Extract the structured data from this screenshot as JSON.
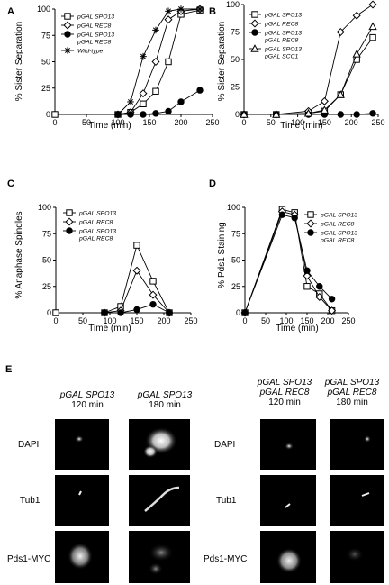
{
  "panels": {
    "A": {
      "label": "A",
      "ylabel": "% Sister Separation",
      "xlabel": "Time (min)"
    },
    "B": {
      "label": "B",
      "ylabel": "% Sister Separation",
      "xlabel": "Time (min)"
    },
    "C": {
      "label": "C",
      "ylabel": "% Anaphase Spindles",
      "xlabel": "Time (min)"
    },
    "D": {
      "label": "D",
      "ylabel": "% Pds1 Staining",
      "xlabel": "Time (min)"
    },
    "E": {
      "label": "E"
    }
  },
  "panelE": {
    "col1": {
      "line1": "pGAL SPO13",
      "time": "120 min"
    },
    "col2": {
      "line1": "pGAL  SPO13",
      "time": "180 min"
    },
    "col3": {
      "line1": "pGAL  SPO13",
      "line2": "pGAL  REC8",
      "time": "120 min"
    },
    "col4": {
      "line1": "pGAL  SPO13",
      "line2": "pGAL  REC8",
      "time": "180 min"
    },
    "rows": [
      "DAPI",
      "Tub1",
      "Pds1-MYC"
    ]
  },
  "chart_data": [
    {
      "panel": "A",
      "type": "line",
      "xlabel": "Time (min)",
      "ylabel": "% Sister Separation",
      "xlim": [
        0,
        250
      ],
      "ylim": [
        0,
        100
      ],
      "xticks": [
        0,
        50,
        100,
        150,
        200,
        250
      ],
      "yticks": [
        0,
        25,
        50,
        75,
        100
      ],
      "legend_position": "top-left",
      "series": [
        {
          "name": "pGAL SPO13",
          "marker": "open-square",
          "x": [
            0,
            100,
            120,
            140,
            160,
            180,
            200,
            230
          ],
          "y": [
            0,
            0,
            2,
            10,
            22,
            50,
            95,
            99
          ]
        },
        {
          "name": "pGAL REC8",
          "marker": "open-diamond",
          "x": [
            100,
            120,
            140,
            160,
            180,
            200,
            230
          ],
          "y": [
            0,
            2,
            20,
            50,
            90,
            98,
            100
          ]
        },
        {
          "name": "pGAL SPO13 pGAL REC8",
          "marker": "filled-circle",
          "x": [
            100,
            120,
            140,
            160,
            180,
            200,
            230
          ],
          "y": [
            0,
            0,
            0,
            1,
            3,
            12,
            23
          ]
        },
        {
          "name": "Wild-type",
          "marker": "asterisk",
          "x": [
            100,
            120,
            140,
            160,
            180,
            200,
            230
          ],
          "y": [
            0,
            12,
            55,
            80,
            98,
            100,
            100
          ]
        }
      ]
    },
    {
      "panel": "B",
      "type": "line",
      "xlabel": "Time (min)",
      "ylabel": "% Sister Separation",
      "xlim": [
        0,
        250
      ],
      "ylim": [
        0,
        100
      ],
      "xticks": [
        0,
        50,
        100,
        150,
        200,
        250
      ],
      "yticks": [
        0,
        25,
        50,
        75,
        100
      ],
      "legend_position": "top-left",
      "series": [
        {
          "name": "pGAL SPO13",
          "marker": "open-square",
          "x": [
            0,
            60,
            120,
            150,
            180,
            210,
            240
          ],
          "y": [
            0,
            0,
            1,
            3,
            18,
            50,
            70
          ]
        },
        {
          "name": "pGAL REC8",
          "marker": "open-diamond",
          "x": [
            0,
            60,
            120,
            150,
            180,
            210,
            240
          ],
          "y": [
            0,
            0,
            3,
            12,
            75,
            90,
            100
          ]
        },
        {
          "name": "pGAL SPO13 pGAL REC8",
          "marker": "filled-circle",
          "x": [
            0,
            60,
            120,
            150,
            180,
            210,
            240
          ],
          "y": [
            0,
            0,
            0,
            0,
            0,
            0,
            1
          ]
        },
        {
          "name": "pGAL SPO13 pGAL SCC1",
          "marker": "open-triangle",
          "x": [
            0,
            60,
            120,
            150,
            180,
            210,
            240
          ],
          "y": [
            0,
            0,
            1,
            4,
            18,
            55,
            80
          ]
        }
      ]
    },
    {
      "panel": "C",
      "type": "line",
      "xlabel": "Time (min)",
      "ylabel": "% Anaphase Spindles",
      "xlim": [
        0,
        250
      ],
      "ylim": [
        0,
        100
      ],
      "xticks": [
        0,
        50,
        100,
        150,
        200,
        250
      ],
      "yticks": [
        0,
        25,
        50,
        75,
        100
      ],
      "legend_position": "top-left",
      "series": [
        {
          "name": "pGAL SPO13",
          "marker": "open-square",
          "x": [
            0,
            90,
            120,
            150,
            180,
            210
          ],
          "y": [
            0,
            0,
            6,
            64,
            30,
            0
          ]
        },
        {
          "name": "pGAL REC8",
          "marker": "open-diamond",
          "x": [
            90,
            120,
            150,
            180,
            210
          ],
          "y": [
            0,
            2,
            40,
            17,
            0
          ]
        },
        {
          "name": "pGAL SPO13 pGAL REC8",
          "marker": "filled-circle",
          "x": [
            90,
            120,
            150,
            180,
            210
          ],
          "y": [
            0,
            0,
            3,
            8,
            0
          ]
        }
      ]
    },
    {
      "panel": "D",
      "type": "line",
      "xlabel": "Time (min)",
      "ylabel": "% Pds1 Staining",
      "xlim": [
        0,
        250
      ],
      "ylim": [
        0,
        100
      ],
      "xticks": [
        0,
        50,
        100,
        150,
        200,
        250
      ],
      "yticks": [
        0,
        25,
        50,
        75,
        100
      ],
      "legend_position": "top-right",
      "series": [
        {
          "name": "pGAL SPO13",
          "marker": "open-square",
          "x": [
            0,
            90,
            120,
            150,
            180,
            210
          ],
          "y": [
            0,
            98,
            95,
            25,
            18,
            2
          ]
        },
        {
          "name": "pGAL REC8",
          "marker": "open-diamond",
          "x": [
            0,
            90,
            120,
            150,
            180,
            210
          ],
          "y": [
            0,
            96,
            93,
            35,
            15,
            2
          ]
        },
        {
          "name": "pGAL SPO13 pGAL REC8",
          "marker": "filled-circle",
          "x": [
            0,
            90,
            120,
            150,
            180,
            210
          ],
          "y": [
            0,
            93,
            90,
            40,
            25,
            13
          ]
        }
      ]
    }
  ]
}
